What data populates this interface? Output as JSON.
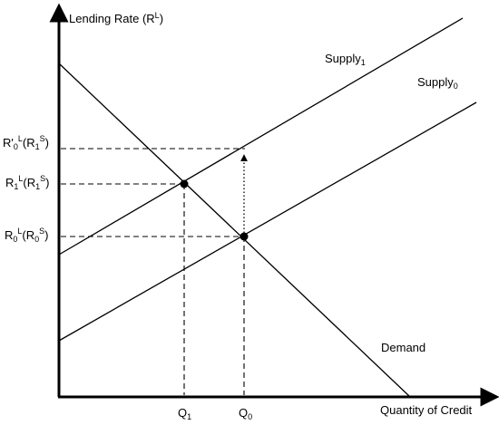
{
  "y_axis_label": {
    "main": "Lending Rate (R",
    "sup": "L",
    "tail": ")"
  },
  "x_axis_label": "Quantity of Credit",
  "curves": {
    "supply1": {
      "main": "Supply",
      "sub": "1"
    },
    "supply0": {
      "main": "Supply",
      "sub": "0"
    },
    "demand": "Demand"
  },
  "rate_labels": {
    "r0_prime": {
      "a": "R'",
      "b": "0",
      "c": "L",
      "d": "(R",
      "e": "1",
      "f": "S",
      "g": ")"
    },
    "r1": {
      "a": "R",
      "b": "1",
      "c": "L",
      "d": "(R",
      "e": "1",
      "f": "S",
      "g": ")"
    },
    "r0": {
      "a": "R",
      "b": "0",
      "c": "L",
      "d": "(R",
      "e": "0",
      "f": "S",
      "g": ")"
    }
  },
  "quantity_labels": {
    "q1": {
      "main": "Q",
      "sub": "1"
    },
    "q0": {
      "main": "Q",
      "sub": "0"
    }
  },
  "colors": {
    "ink": "#000000",
    "background": "#ffffff"
  }
}
